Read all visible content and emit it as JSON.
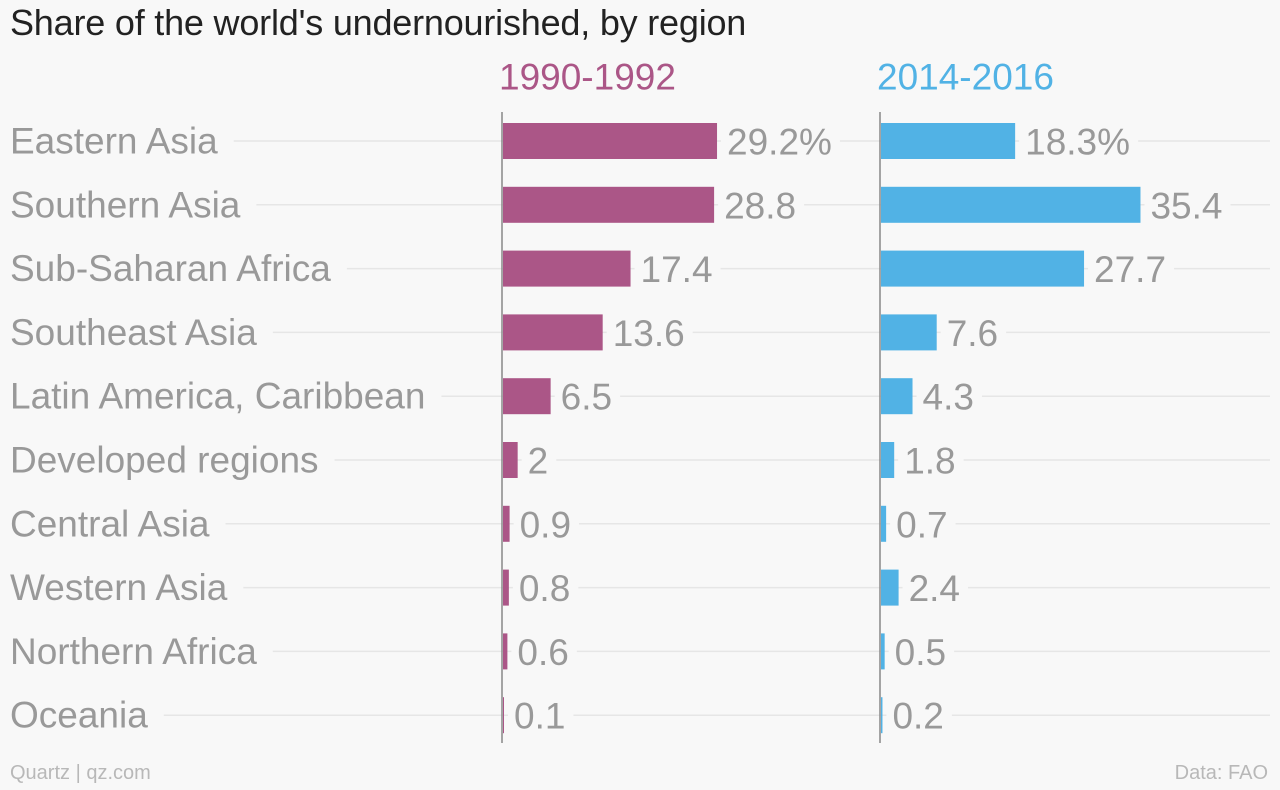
{
  "title": "Share of the world's undernourished, by region",
  "footer": {
    "source_left": "Quartz | qz.com",
    "source_right": "Data: FAO"
  },
  "colors": {
    "series1": "#ab5687",
    "series2": "#51b2e5",
    "label": "#999999",
    "grid": "#e6e6e6",
    "axis": "#888888"
  },
  "chart_data": {
    "type": "bar",
    "orientation": "horizontal",
    "title": "Share of the world's undernourished, by region",
    "categories": [
      "Eastern Asia",
      "Southern Asia",
      "Sub-Saharan Africa",
      "Southeast Asia",
      "Latin America, Caribbean",
      "Developed regions",
      "Central Asia",
      "Western Asia",
      "Northern Africa",
      "Oceania"
    ],
    "series": [
      {
        "name": "1990-1992",
        "values": [
          29.2,
          28.8,
          17.4,
          13.6,
          6.5,
          2,
          0.9,
          0.8,
          0.6,
          0.1
        ],
        "labels": [
          "29.2%",
          "28.8",
          "17.4",
          "13.6",
          "6.5",
          "2",
          "0.9",
          "0.8",
          "0.6",
          "0.1"
        ]
      },
      {
        "name": "2014-2016",
        "values": [
          18.3,
          35.4,
          27.7,
          7.6,
          4.3,
          1.8,
          0.7,
          2.4,
          0.5,
          0.2
        ],
        "labels": [
          "18.3%",
          "35.4",
          "27.7",
          "7.6",
          "4.3",
          "1.8",
          "0.7",
          "2.4",
          "0.5",
          "0.2"
        ]
      }
    ],
    "xlabel": "",
    "ylabel": "",
    "xlim": [
      0,
      36
    ],
    "grid": true,
    "legend": "none"
  }
}
